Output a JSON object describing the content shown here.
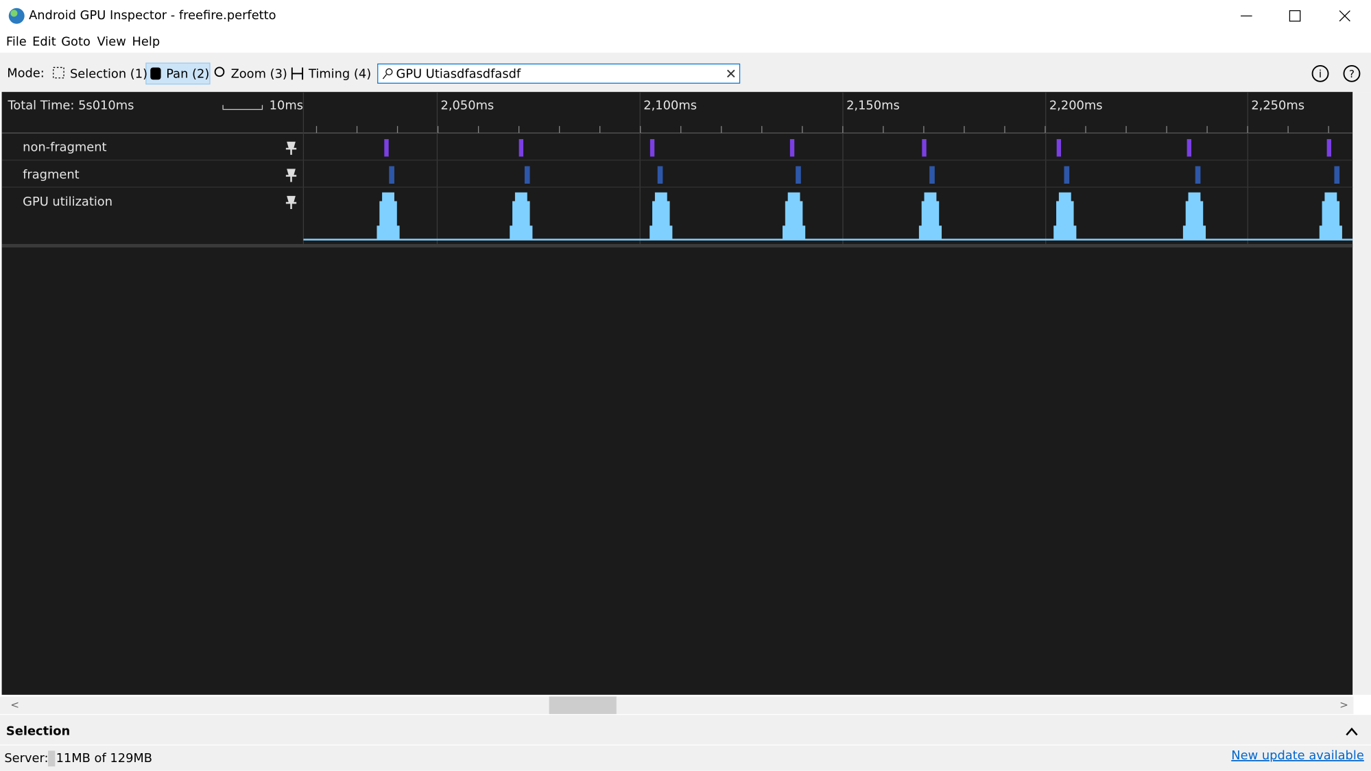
{
  "window": {
    "title": "Android GPU Inspector - freefire.perfetto"
  },
  "menu": [
    "File",
    "Edit",
    "Goto",
    "View",
    "Help"
  ],
  "toolbar": {
    "mode_label": "Mode:",
    "modes": [
      "Selection (1)",
      "Pan (2)",
      "Zoom (3)",
      "Timing (4)"
    ],
    "search": "GPU Utiasdfasdfasdf"
  },
  "timeline": {
    "total_time": "Total Time: 5s010ms",
    "scale": "10ms",
    "ticks": [
      "2,050ms",
      "2,100ms",
      "2,150ms",
      "2,200ms",
      "2,250ms"
    ],
    "tracks": [
      "non-fragment",
      "fragment",
      "GPU utilization"
    ]
  },
  "panel": {
    "title": "Selection"
  },
  "status": {
    "server_label": "Server:",
    "memory": "11MB of 129MB",
    "update": "New update available"
  }
}
